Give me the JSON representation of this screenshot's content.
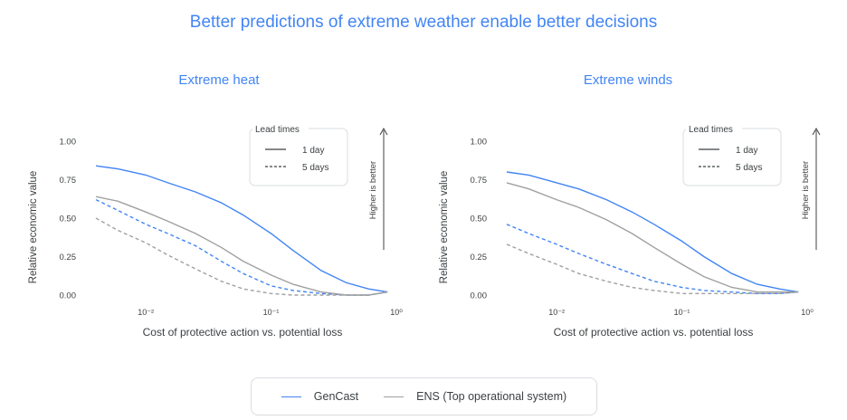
{
  "title": "Better predictions of extreme weather enable better decisions",
  "legend": {
    "gencast": "GenCast",
    "ens": "ENS (Top operational system)",
    "colors": {
      "gencast": "#4285f4",
      "ens": "#a0a0a0"
    }
  },
  "chart_data": [
    {
      "type": "line",
      "title": "Extreme heat",
      "xlabel": "Cost of protective action vs. potential loss",
      "ylabel": "Relative economic value",
      "xscale": "log",
      "xlim": [
        0.0035,
        1
      ],
      "ylim": [
        0,
        1
      ],
      "xticks": [
        "10⁻²",
        "10⁻¹",
        "10⁰"
      ],
      "yticks": [
        "0.00",
        "0.25",
        "0.50",
        "0.75",
        "1.00"
      ],
      "inset_legend": {
        "title": "Lead times",
        "items": [
          "1 day",
          "5 days"
        ]
      },
      "annotation": "Higher is better",
      "series": [
        {
          "name": "GenCast",
          "lead": "1 day",
          "style": "solid",
          "x": [
            0.004,
            0.006,
            0.01,
            0.015,
            0.025,
            0.04,
            0.06,
            0.1,
            0.15,
            0.25,
            0.4,
            0.6,
            0.85
          ],
          "y": [
            0.84,
            0.82,
            0.78,
            0.73,
            0.67,
            0.6,
            0.52,
            0.4,
            0.29,
            0.16,
            0.08,
            0.04,
            0.02
          ]
        },
        {
          "name": "GenCast",
          "lead": "5 days",
          "style": "dashed",
          "x": [
            0.004,
            0.006,
            0.01,
            0.015,
            0.025,
            0.04,
            0.06,
            0.1,
            0.15,
            0.25,
            0.4,
            0.6,
            0.85
          ],
          "y": [
            0.62,
            0.55,
            0.46,
            0.4,
            0.32,
            0.22,
            0.14,
            0.06,
            0.03,
            0.01,
            0.0,
            0.0,
            0.02
          ]
        },
        {
          "name": "ENS (Top operational system)",
          "lead": "1 day",
          "style": "solid",
          "x": [
            0.004,
            0.006,
            0.01,
            0.015,
            0.025,
            0.04,
            0.06,
            0.1,
            0.15,
            0.25,
            0.4,
            0.6,
            0.85
          ],
          "y": [
            0.64,
            0.61,
            0.54,
            0.48,
            0.4,
            0.31,
            0.22,
            0.13,
            0.07,
            0.02,
            0.0,
            0.0,
            0.02
          ]
        },
        {
          "name": "ENS (Top operational system)",
          "lead": "5 days",
          "style": "dashed",
          "x": [
            0.004,
            0.006,
            0.01,
            0.015,
            0.025,
            0.04,
            0.06,
            0.1,
            0.15,
            0.25,
            0.4,
            0.6,
            0.85
          ],
          "y": [
            0.5,
            0.42,
            0.34,
            0.26,
            0.17,
            0.09,
            0.04,
            0.01,
            0.0,
            0.0,
            0.0,
            0.0,
            0.02
          ]
        }
      ]
    },
    {
      "type": "line",
      "title": "Extreme winds",
      "xlabel": "Cost of protective action vs. potential loss",
      "ylabel": "Relative economic value",
      "xscale": "log",
      "xlim": [
        0.0035,
        1
      ],
      "ylim": [
        0,
        1
      ],
      "xticks": [
        "10⁻²",
        "10⁻¹",
        "10⁰"
      ],
      "yticks": [
        "0.00",
        "0.25",
        "0.50",
        "0.75",
        "1.00"
      ],
      "inset_legend": {
        "title": "Lead times",
        "items": [
          "1 day",
          "5 days"
        ]
      },
      "annotation": "Higher is better",
      "series": [
        {
          "name": "GenCast",
          "lead": "1 day",
          "style": "solid",
          "x": [
            0.004,
            0.006,
            0.01,
            0.015,
            0.025,
            0.04,
            0.06,
            0.1,
            0.15,
            0.25,
            0.4,
            0.6,
            0.85
          ],
          "y": [
            0.8,
            0.78,
            0.73,
            0.69,
            0.62,
            0.54,
            0.46,
            0.35,
            0.25,
            0.14,
            0.07,
            0.04,
            0.02
          ]
        },
        {
          "name": "GenCast",
          "lead": "5 days",
          "style": "dashed",
          "x": [
            0.004,
            0.006,
            0.01,
            0.015,
            0.025,
            0.04,
            0.06,
            0.1,
            0.15,
            0.25,
            0.4,
            0.6,
            0.85
          ],
          "y": [
            0.46,
            0.4,
            0.33,
            0.27,
            0.2,
            0.14,
            0.09,
            0.05,
            0.03,
            0.02,
            0.01,
            0.01,
            0.02
          ]
        },
        {
          "name": "ENS (Top operational system)",
          "lead": "1 day",
          "style": "solid",
          "x": [
            0.004,
            0.006,
            0.01,
            0.015,
            0.025,
            0.04,
            0.06,
            0.1,
            0.15,
            0.25,
            0.4,
            0.6,
            0.85
          ],
          "y": [
            0.73,
            0.69,
            0.62,
            0.57,
            0.49,
            0.4,
            0.31,
            0.2,
            0.12,
            0.05,
            0.02,
            0.02,
            0.02
          ]
        },
        {
          "name": "ENS (Top operational system)",
          "lead": "5 days",
          "style": "dashed",
          "x": [
            0.004,
            0.006,
            0.01,
            0.015,
            0.025,
            0.04,
            0.06,
            0.1,
            0.15,
            0.25,
            0.4,
            0.6,
            0.85
          ],
          "y": [
            0.33,
            0.27,
            0.2,
            0.14,
            0.09,
            0.05,
            0.03,
            0.01,
            0.01,
            0.01,
            0.01,
            0.01,
            0.02
          ]
        }
      ]
    }
  ]
}
